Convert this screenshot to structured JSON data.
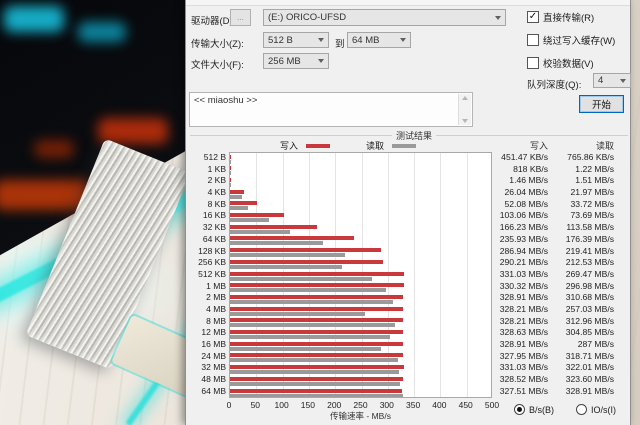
{
  "window": {
    "drive_row": {
      "label": "驱动器(D):",
      "browse_button": "...",
      "value": "(E:) ORICO-UFSD"
    },
    "transfer_row": {
      "label": "传输大小(Z):",
      "from": "512 B",
      "to_label": "到",
      "to": "64 MB"
    },
    "file_row": {
      "label": "文件大小(F):",
      "value": "256 MB"
    },
    "checkboxes": [
      {
        "label": "直接传输(R)",
        "checked": true
      },
      {
        "label": "绕过写入缓存(W)",
        "checked": false
      },
      {
        "label": "校验数据(V)",
        "checked": false
      }
    ],
    "queue_row": {
      "label": "队列深度(Q):",
      "value": "4"
    },
    "description": "<< miaoshu >>",
    "start_button": "开始",
    "results_group": "测试结果",
    "legend": {
      "write": "写入",
      "read": "读取"
    },
    "column_headers": {
      "write": "写入",
      "read": "读取"
    },
    "unit_radios": {
      "bytes": "B/s(B)",
      "io": "IO/s(I)",
      "selected": "bytes"
    },
    "colors": {
      "write_bar": "#c9393b",
      "read_bar": "#9a9a9a",
      "accent": "#0067c0"
    }
  },
  "chart_data": {
    "type": "bar",
    "orientation": "horizontal",
    "title": "测试结果",
    "xlabel": "传输速率 - MB/s",
    "xlim": [
      0,
      500
    ],
    "xticks": [
      0,
      50,
      100,
      150,
      200,
      250,
      300,
      350,
      400,
      450,
      500
    ],
    "grid": true,
    "legend_position": "top",
    "categories": [
      "512 B",
      "1 KB",
      "2 KB",
      "4 KB",
      "8 KB",
      "16 KB",
      "32 KB",
      "64 KB",
      "128 KB",
      "256 KB",
      "512 KB",
      "1 MB",
      "2 MB",
      "4 MB",
      "8 MB",
      "12 MB",
      "16 MB",
      "24 MB",
      "32 MB",
      "48 MB",
      "64 MB"
    ],
    "series": [
      {
        "name": "写入",
        "color": "#c9393b",
        "values_mbps": [
          0.44,
          0.8,
          1.46,
          26.04,
          52.08,
          103.06,
          166.23,
          235.93,
          286.94,
          290.21,
          331.03,
          330.32,
          328.91,
          328.21,
          328.21,
          328.63,
          328.91,
          327.95,
          331.03,
          328.52,
          327.51
        ],
        "labels": [
          "451.47 KB/s",
          "818 KB/s",
          "1.46 MB/s",
          "26.04 MB/s",
          "52.08 MB/s",
          "103.06 MB/s",
          "166.23 MB/s",
          "235.93 MB/s",
          "286.94 MB/s",
          "290.21 MB/s",
          "331.03 MB/s",
          "330.32 MB/s",
          "328.91 MB/s",
          "328.21 MB/s",
          "328.21 MB/s",
          "328.63 MB/s",
          "328.91 MB/s",
          "327.95 MB/s",
          "331.03 MB/s",
          "328.52 MB/s",
          "327.51 MB/s"
        ]
      },
      {
        "name": "读取",
        "color": "#9a9a9a",
        "values_mbps": [
          0.75,
          1.22,
          1.51,
          21.97,
          33.72,
          73.69,
          113.58,
          176.39,
          219.41,
          212.53,
          269.47,
          296.98,
          310.68,
          257.03,
          312.96,
          304.85,
          287,
          318.71,
          322.01,
          323.6,
          328.91
        ],
        "labels": [
          "765.86 KB/s",
          "1.22 MB/s",
          "1.51 MB/s",
          "21.97 MB/s",
          "33.72 MB/s",
          "73.69 MB/s",
          "113.58 MB/s",
          "176.39 MB/s",
          "219.41 MB/s",
          "212.53 MB/s",
          "269.47 MB/s",
          "296.98 MB/s",
          "310.68 MB/s",
          "257.03 MB/s",
          "312.96 MB/s",
          "304.85 MB/s",
          "287 MB/s",
          "318.71 MB/s",
          "322.01 MB/s",
          "323.60 MB/s",
          "328.91 MB/s"
        ]
      }
    ]
  }
}
